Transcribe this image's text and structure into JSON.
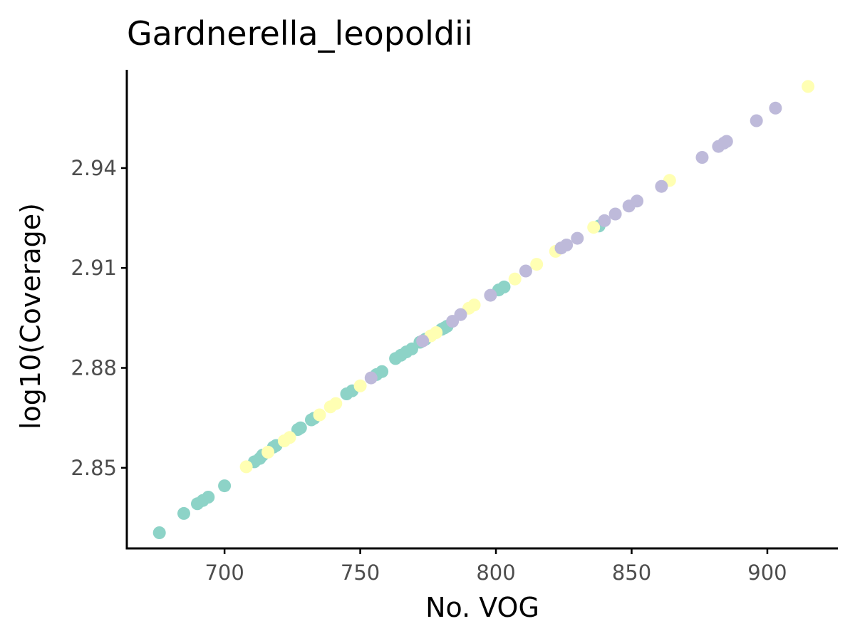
{
  "chart_data": {
    "type": "scatter",
    "title": "Gardnerella_leopoldii",
    "xlabel": "No. VOG",
    "ylabel": "log10(Coverage)",
    "xlim": [
      664,
      926
    ],
    "ylim": [
      2.8258,
      2.9695
    ],
    "x_ticks": [
      700,
      750,
      800,
      850,
      900
    ],
    "y_ticks": [
      2.85,
      2.88,
      2.91,
      2.94
    ],
    "grid": false,
    "legend": "none",
    "colors": [
      "#8dd3c7",
      "#ffffb3",
      "#bebada"
    ],
    "series": [
      {
        "color": "#8dd3c7",
        "x": [
          676,
          685,
          690,
          692,
          694,
          700,
          711,
          713,
          714,
          718,
          719,
          727,
          728,
          732,
          733,
          745,
          747,
          756,
          758,
          763,
          765,
          767,
          769,
          772,
          774,
          780,
          781,
          782,
          801,
          803,
          838
        ],
        "y": [
          2.8305,
          2.8363,
          2.8392,
          2.8402,
          2.8412,
          2.8446,
          2.8518,
          2.8528,
          2.8538,
          2.8562,
          2.8567,
          2.8615,
          2.862,
          2.8644,
          2.8649,
          2.8722,
          2.8731,
          2.878,
          2.8789,
          2.8828,
          2.8838,
          2.8848,
          2.8857,
          2.8877,
          2.8886,
          2.8916,
          2.892,
          2.8925,
          2.9034,
          2.9043,
          2.9226
        ]
      },
      {
        "color": "#ffffb3",
        "x": [
          708,
          716,
          722,
          724,
          735,
          739,
          741,
          750,
          776,
          778,
          790,
          792,
          807,
          815,
          822,
          836,
          864,
          915
        ],
        "y": [
          2.8503,
          2.8547,
          2.8581,
          2.8591,
          2.8659,
          2.8683,
          2.8693,
          2.8746,
          2.8896,
          2.8906,
          2.8979,
          2.8989,
          2.9067,
          2.9111,
          2.915,
          2.9222,
          2.9363,
          2.9645
        ]
      },
      {
        "color": "#bebada",
        "x": [
          754,
          773,
          784,
          787,
          798,
          811,
          824,
          826,
          830,
          840,
          844,
          849,
          852,
          861,
          876,
          882,
          884,
          885,
          896,
          903
        ],
        "y": [
          2.877,
          2.8881,
          2.894,
          2.896,
          2.9018,
          2.9091,
          2.916,
          2.9169,
          2.9189,
          2.9242,
          2.9262,
          2.9286,
          2.9301,
          2.9345,
          2.9432,
          2.9465,
          2.9475,
          2.948,
          2.9542,
          2.958
        ]
      }
    ]
  }
}
